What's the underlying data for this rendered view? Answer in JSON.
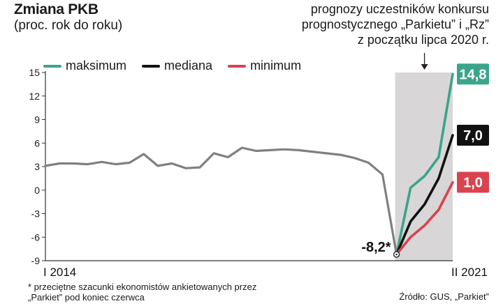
{
  "header": {
    "title": "Zmiana PKB",
    "subtitle": "(proc. rok do roku)",
    "forecast_note": [
      "prognozy uczestników konkursu",
      "prognostycznego „Parkietu” i „Rz”",
      "z początku lipca 2020 r."
    ]
  },
  "legend": [
    {
      "label": "maksimum",
      "color": "#3aa58a"
    },
    {
      "label": "mediana",
      "color": "#111111"
    },
    {
      "label": "minimum",
      "color": "#d9434f"
    }
  ],
  "footer": {
    "footnote": "* przeciętne szacunki ekonomistów ankietowanych przez „Parkiet” pod koniec czerwca",
    "source": "Źródło: GUS, „Parkiet”"
  },
  "chart_data": {
    "type": "line",
    "title": "Zmiana PKB",
    "subtitle": "(proc. rok do roku)",
    "ylim": [
      -9,
      15
    ],
    "yticks": [
      15,
      12,
      9,
      6,
      3,
      0,
      -3,
      -6,
      -9
    ],
    "x_start_label": "I 2014",
    "x_end_label": "II 2021",
    "grid": false,
    "legend_position": "top-left",
    "history": {
      "name": "PKB",
      "color": "#808080",
      "values": [
        3.1,
        3.4,
        3.4,
        3.3,
        3.6,
        3.3,
        3.5,
        4.6,
        3.1,
        3.4,
        2.8,
        2.9,
        4.7,
        4.2,
        5.4,
        5.0,
        5.1,
        5.2,
        5.1,
        4.9,
        4.7,
        4.5,
        4.1,
        3.5,
        2.0,
        -8.2
      ]
    },
    "forecast_x": [
      25,
      26,
      27,
      28,
      29
    ],
    "series": [
      {
        "name": "maksimum",
        "color": "#3aa58a",
        "values": [
          -8.2,
          0.3,
          1.8,
          4.2,
          14.8
        ]
      },
      {
        "name": "mediana",
        "color": "#111111",
        "values": [
          -8.2,
          -4.0,
          -1.8,
          1.5,
          7.0
        ]
      },
      {
        "name": "minimum",
        "color": "#d9434f",
        "values": [
          -8.2,
          -6.0,
          -4.5,
          -2.5,
          1.0
        ]
      }
    ],
    "annotations": [
      {
        "text": "-8,2*",
        "value": -8.2
      },
      {
        "text": "14,8",
        "color": "#3aa58a",
        "value": 14.8
      },
      {
        "text": "7,0",
        "color": "#111111",
        "value": 7.0
      },
      {
        "text": "1,0",
        "color": "#d9434f",
        "value": 1.0
      }
    ]
  }
}
